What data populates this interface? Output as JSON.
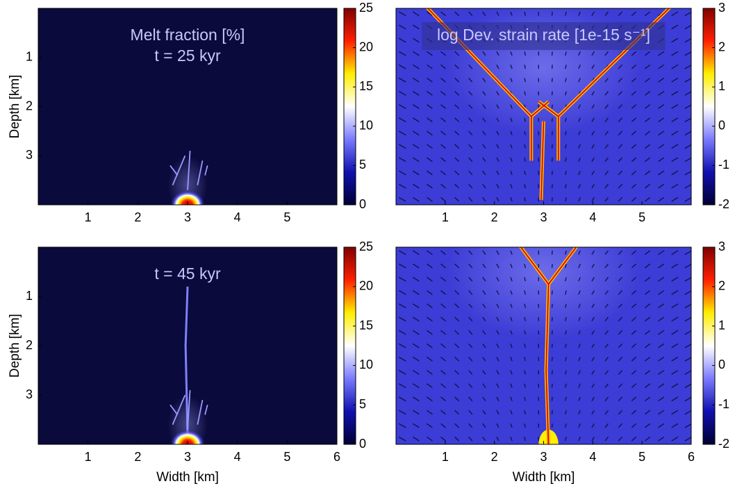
{
  "chart_data": [
    {
      "type": "heatmap",
      "annotations": [
        "Melt fraction [%]",
        "t = 25 kyr"
      ],
      "ylabel": "Depth [km]",
      "xlim": [
        0,
        6
      ],
      "ylim": [
        0,
        4
      ],
      "xticks": [
        1,
        2,
        3,
        4,
        5
      ],
      "yticks": [
        1,
        2,
        3
      ],
      "colorbar": {
        "lim": [
          0,
          25
        ],
        "ticks": [
          0,
          5,
          10,
          15,
          20,
          25
        ]
      },
      "colormap": [
        "#000033",
        "#1010b0",
        "#7a7aff",
        "#ffffff",
        "#ffee00",
        "#ff2000",
        "#800000"
      ]
    },
    {
      "type": "heatmap",
      "annotations": [
        "log Dev. strain rate [1e-15 s⁻¹]"
      ],
      "xlim": [
        0,
        6
      ],
      "ylim": [
        0,
        4
      ],
      "xticks": [
        1,
        2,
        3,
        4,
        5
      ],
      "yticks": [],
      "colorbar": {
        "lim": [
          -2,
          3
        ],
        "ticks": [
          -2,
          -1,
          0,
          1,
          2,
          3
        ]
      },
      "colormap": [
        "#000033",
        "#1010b0",
        "#7a7aff",
        "#ffffff",
        "#ffee00",
        "#ff2000",
        "#800000"
      ]
    },
    {
      "type": "heatmap",
      "annotations": [
        "t = 45 kyr"
      ],
      "ylabel": "Depth [km]",
      "xlabel": "Width [km]",
      "xlim": [
        0,
        6
      ],
      "ylim": [
        0,
        4
      ],
      "xticks": [
        1,
        2,
        3,
        4,
        5,
        6
      ],
      "yticks": [
        1,
        2,
        3
      ],
      "colorbar": {
        "lim": [
          0,
          25
        ],
        "ticks": [
          0,
          5,
          10,
          15,
          20,
          25
        ]
      },
      "colormap": [
        "#000033",
        "#1010b0",
        "#7a7aff",
        "#ffffff",
        "#ffee00",
        "#ff2000",
        "#800000"
      ]
    },
    {
      "type": "heatmap",
      "annotations": [],
      "xlabel": "Width [km]",
      "xlim": [
        0,
        6
      ],
      "ylim": [
        0,
        4
      ],
      "xticks": [
        1,
        2,
        3,
        4,
        5,
        6
      ],
      "yticks": [],
      "colorbar": {
        "lim": [
          -2,
          3
        ],
        "ticks": [
          -2,
          -1,
          0,
          1,
          2,
          3
        ]
      },
      "colormap": [
        "#000033",
        "#1010b0",
        "#7a7aff",
        "#ffffff",
        "#ffee00",
        "#ff2000",
        "#800000"
      ]
    }
  ]
}
